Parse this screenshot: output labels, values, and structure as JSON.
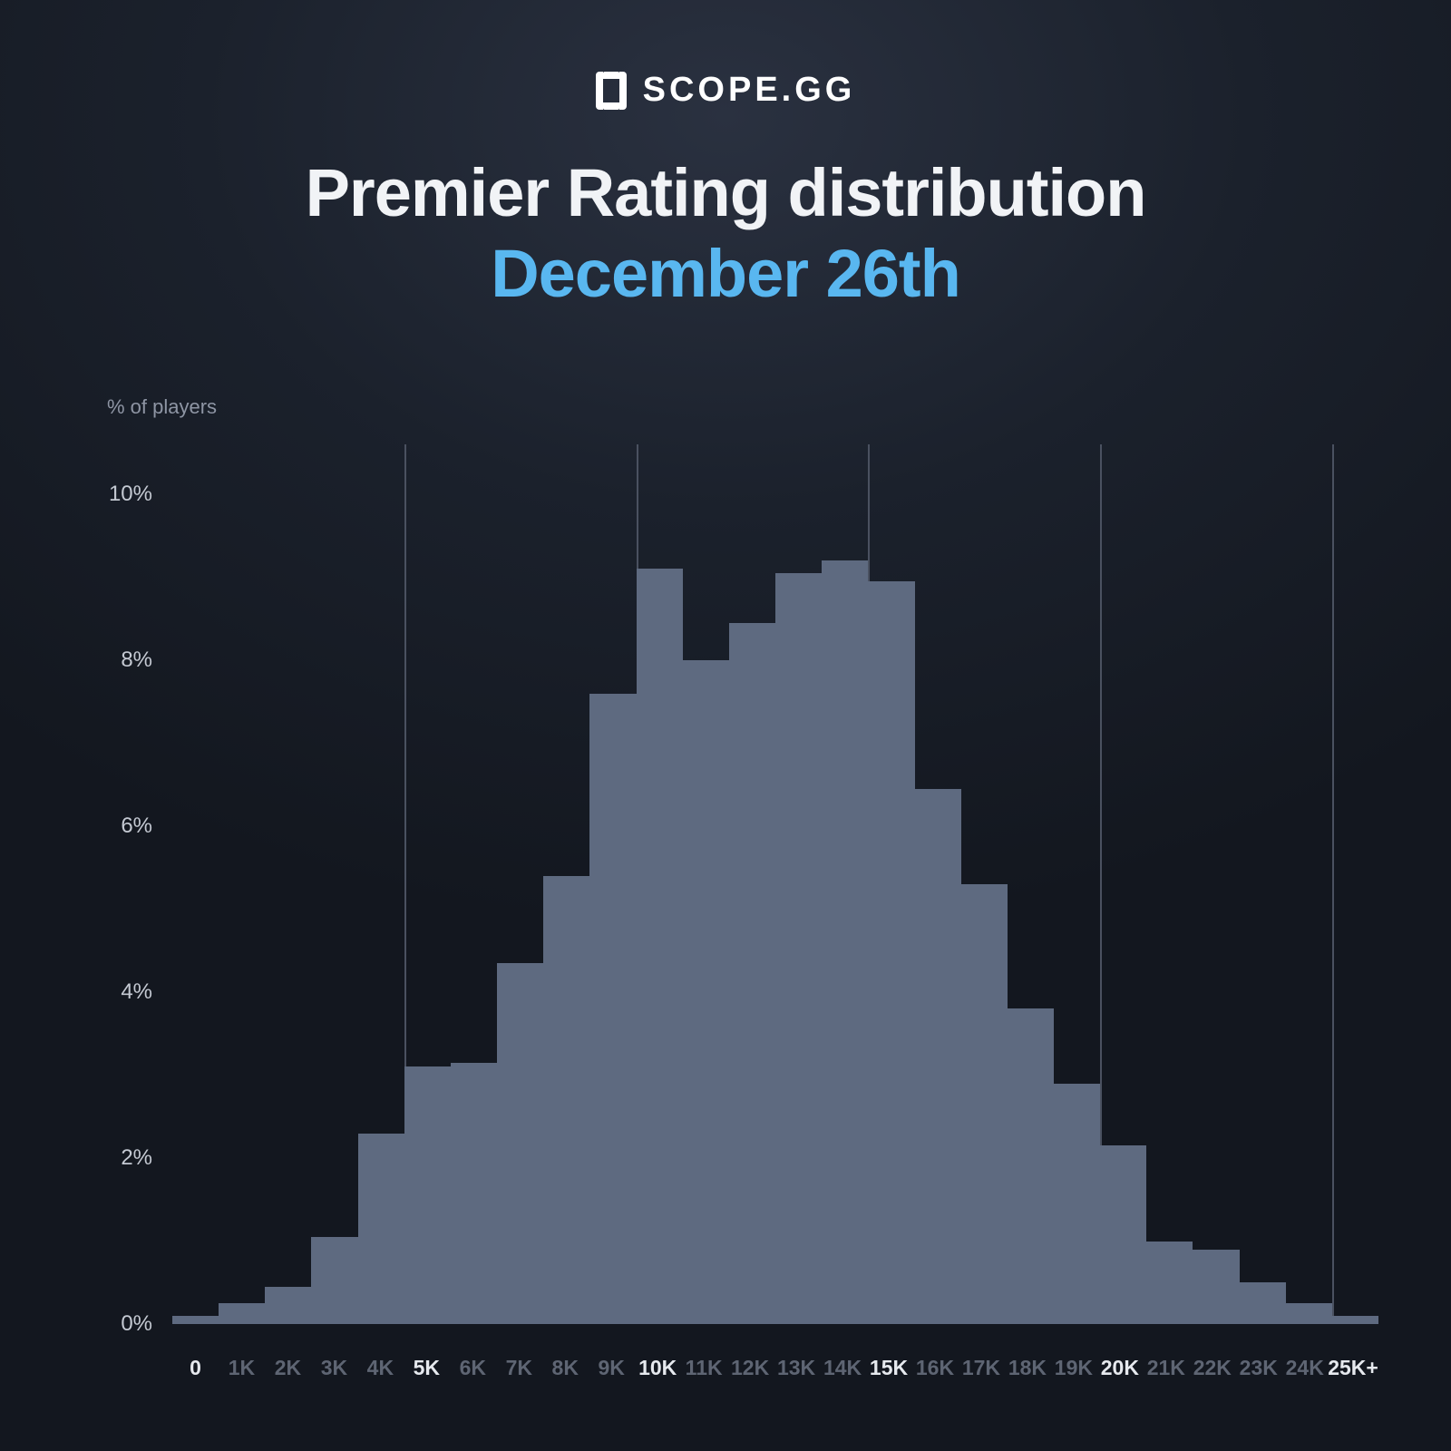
{
  "brand": {
    "name": "SCOPE.GG"
  },
  "title": {
    "line1": "Premier Rating distribution",
    "line2": "December 26th"
  },
  "colors": {
    "title1": "#f1f3f6",
    "title2": "#59b7f0",
    "axis_label": "#8e95a4",
    "tick_minor": "#5e6573",
    "tick_major": "#e6e9ee",
    "bar_fill": "#5e6a80",
    "grid_line": "#4a5160",
    "baseline": "#4a5160"
  },
  "chart": {
    "type": "histogram",
    "y_axis_title": "% of players",
    "y_max": 10.6,
    "y_ticks": [
      {
        "value": 0,
        "label": "0%"
      },
      {
        "value": 2,
        "label": "2%"
      },
      {
        "value": 4,
        "label": "4%"
      },
      {
        "value": 6,
        "label": "6%"
      },
      {
        "value": 8,
        "label": "8%"
      },
      {
        "value": 10,
        "label": "10%"
      }
    ],
    "grid_at_indices": [
      5,
      10,
      15,
      20,
      25
    ],
    "bins": [
      {
        "label": "0",
        "value": 0.1,
        "major": true
      },
      {
        "label": "1K",
        "value": 0.25,
        "major": false
      },
      {
        "label": "2K",
        "value": 0.45,
        "major": false
      },
      {
        "label": "3K",
        "value": 1.05,
        "major": false
      },
      {
        "label": "4K",
        "value": 2.3,
        "major": false
      },
      {
        "label": "5K",
        "value": 3.1,
        "major": true
      },
      {
        "label": "6K",
        "value": 3.15,
        "major": false
      },
      {
        "label": "7K",
        "value": 4.35,
        "major": false
      },
      {
        "label": "8K",
        "value": 5.4,
        "major": false
      },
      {
        "label": "9K",
        "value": 7.6,
        "major": false
      },
      {
        "label": "10K",
        "value": 9.1,
        "major": true
      },
      {
        "label": "11K",
        "value": 8.0,
        "major": false
      },
      {
        "label": "12K",
        "value": 8.45,
        "major": false
      },
      {
        "label": "13K",
        "value": 9.05,
        "major": false
      },
      {
        "label": "14K",
        "value": 9.2,
        "major": false
      },
      {
        "label": "15K",
        "value": 8.95,
        "major": true
      },
      {
        "label": "16K",
        "value": 6.45,
        "major": false
      },
      {
        "label": "17K",
        "value": 5.3,
        "major": false
      },
      {
        "label": "18K",
        "value": 3.8,
        "major": false
      },
      {
        "label": "19K",
        "value": 2.9,
        "major": false
      },
      {
        "label": "20K",
        "value": 2.15,
        "major": true
      },
      {
        "label": "21K",
        "value": 1.0,
        "major": false
      },
      {
        "label": "22K",
        "value": 0.9,
        "major": false
      },
      {
        "label": "23K",
        "value": 0.5,
        "major": false
      },
      {
        "label": "24K",
        "value": 0.25,
        "major": false
      },
      {
        "label": "25K+",
        "value": 0.1,
        "major": true
      }
    ]
  }
}
